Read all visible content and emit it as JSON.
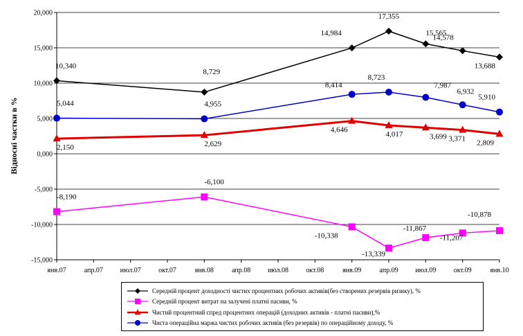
{
  "chart_data": {
    "type": "line",
    "title": "",
    "xlabel": "",
    "ylabel": "Відносні частки в %",
    "ylim": [
      -15000,
      20000
    ],
    "y_ticks": [
      20000,
      15000,
      10000,
      5000,
      0,
      -5000,
      -10000,
      -15000
    ],
    "y_tick_labels": [
      "20,000",
      "15,000",
      "10,000",
      "5,000",
      "0,000",
      "-5,000",
      "-10,000",
      "-15,000"
    ],
    "x_tick_labels": [
      "янв.07",
      "апр.07",
      "июл.07",
      "окт.07",
      "янв.08",
      "апр.08",
      "июл.08",
      "окт.08",
      "янв.09",
      "апр.09",
      "июл.09",
      "окт.09",
      "янв.10"
    ],
    "grid": "horizontal",
    "legend_position": "bottom",
    "series": [
      {
        "name": "Середній процент доходності чистих процентних робочих активів(без створених резервів ризику), %",
        "color": "#000000",
        "marker": "diamond",
        "x": [
          0,
          12,
          24,
          27,
          30,
          33,
          36
        ],
        "values": [
          10340,
          8729,
          14984,
          17355,
          15565,
          14578,
          13688
        ],
        "labels": [
          "10,340",
          "8,729",
          "14,984",
          "17,355",
          "15,565",
          "14,578",
          "13,688"
        ]
      },
      {
        "name": "Середній процент витрат на залучені платні пасиви, %",
        "color": "#ff00ff",
        "marker": "square",
        "x": [
          0,
          12,
          24,
          27,
          30,
          33,
          36
        ],
        "values": [
          -8190,
          -6100,
          -10338,
          -13339,
          -11867,
          -11207,
          -10878
        ],
        "labels": [
          "-8,190",
          "-6,100",
          "-10,338",
          "-13,339",
          "-11,867",
          "-11,207",
          "-10,878"
        ]
      },
      {
        "name": "Чистий процентний спред процентних операцій (доходних активів - платні пасиви),%",
        "color": "#e00000",
        "marker": "triangle",
        "x": [
          0,
          12,
          24,
          27,
          30,
          33,
          36
        ],
        "values": [
          2150,
          2629,
          4646,
          4017,
          3699,
          3371,
          2809
        ],
        "labels": [
          "2,150",
          "2,629",
          "4,646",
          "4,017",
          "3,699",
          "3,371",
          "2,809"
        ]
      },
      {
        "name": "Чиста операційна маржа чистих робочих активів (без резервів) по операційному доходу, %",
        "color": "#0000cc",
        "marker": "circle",
        "x": [
          0,
          12,
          24,
          27,
          30,
          33,
          36
        ],
        "values": [
          5044,
          4955,
          8414,
          8723,
          7987,
          6932,
          5910
        ],
        "labels": [
          "5,044",
          "4,955",
          "8,414",
          "8,723",
          "7,987",
          "6,932",
          "5,910"
        ]
      }
    ]
  }
}
